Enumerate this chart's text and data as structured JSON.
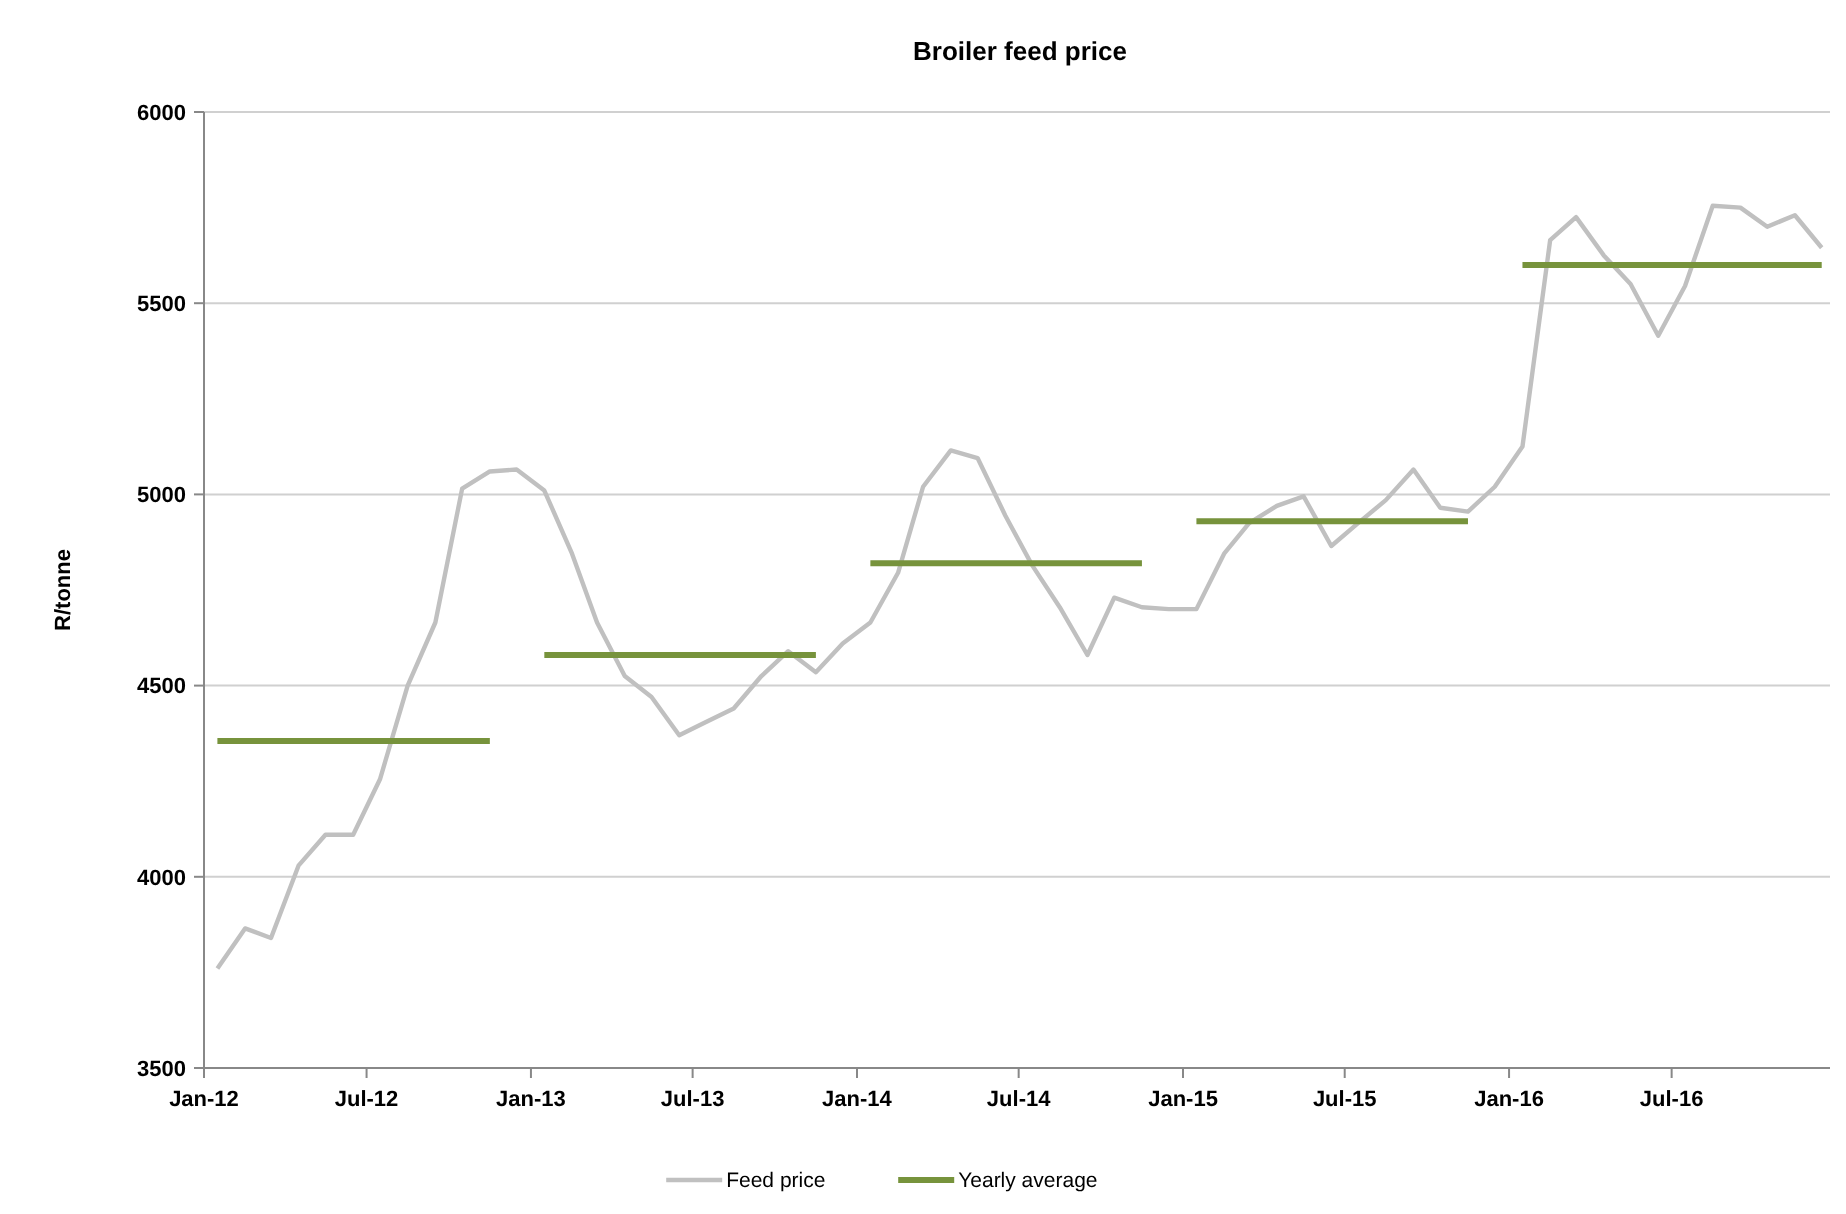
{
  "chart_data": {
    "type": "line",
    "title": "Broiler feed price",
    "ylabel": "R/tonne",
    "x": [
      "2012-01-16",
      "2012-02-16",
      "2012-03-16",
      "2012-04-16",
      "2012-05-16",
      "2012-06-16",
      "2012-07-16",
      "2012-08-16",
      "2012-09-16",
      "2012-10-16",
      "2012-11-16",
      "2012-12-16",
      "2013-01-16",
      "2013-02-16",
      "2013-03-16",
      "2013-04-16",
      "2013-05-16",
      "2013-06-16",
      "2013-07-16",
      "2013-08-16",
      "2013-09-16",
      "2013-10-16",
      "2013-11-16",
      "2013-12-16",
      "2014-01-16",
      "2014-02-16",
      "2014-03-16",
      "2014-04-16",
      "2014-05-16",
      "2014-06-16",
      "2014-07-16",
      "2014-08-16",
      "2014-09-16",
      "2014-10-16",
      "2014-11-16",
      "2014-12-16",
      "2015-01-16",
      "2015-02-16",
      "2015-03-16",
      "2015-04-16",
      "2015-05-16",
      "2015-06-16",
      "2015-07-16",
      "2015-08-16",
      "2015-09-16",
      "2015-10-16",
      "2015-11-16",
      "2015-12-16",
      "2016-01-16",
      "2016-02-16",
      "2016-03-16",
      "2016-04-16",
      "2016-05-16",
      "2016-06-16",
      "2016-07-16",
      "2016-08-16",
      "2016-09-16",
      "2016-10-16",
      "2016-11-16",
      "2016-12-16"
    ],
    "series": [
      {
        "name": "Feed price",
        "color": "#c0c0c0",
        "values": [
          3760,
          3865,
          3840,
          4030,
          4110,
          4110,
          4255,
          4500,
          4665,
          5015,
          5060,
          5065,
          5010,
          4845,
          4665,
          4525,
          4470,
          4370,
          4405,
          4440,
          4525,
          4590,
          4535,
          4610,
          4665,
          4795,
          5020,
          5115,
          5095,
          4945,
          4815,
          4705,
          4580,
          4730,
          4705,
          4700,
          4700,
          4845,
          4925,
          4970,
          4995,
          4865,
          4925,
          4985,
          5065,
          4965,
          4955,
          5020,
          5125,
          5665,
          5725,
          5625,
          5550,
          5415,
          5545,
          5755,
          5750,
          5700,
          5730,
          5645
        ]
      },
      {
        "name": "Yearly average",
        "color": "#77933c",
        "values": [
          4355,
          4355,
          4355,
          4355,
          4355,
          4355,
          4355,
          4355,
          4355,
          4355,
          4355,
          null,
          4580,
          4580,
          4580,
          4580,
          4580,
          4580,
          4580,
          4580,
          4580,
          4580,
          4580,
          null,
          4820,
          4820,
          4820,
          4820,
          4820,
          4820,
          4820,
          4820,
          4820,
          4820,
          4820,
          null,
          4930,
          4930,
          4930,
          4930,
          4930,
          4930,
          4930,
          4930,
          4930,
          4930,
          4930,
          null,
          5600,
          5600,
          5600,
          5600,
          5600,
          5600,
          5600,
          5600,
          5600,
          5600,
          5600,
          5600
        ]
      }
    ],
    "xlim": [
      "2012-01-01",
      "2017-01-01"
    ],
    "xticks": [
      {
        "value": "2012-01-01",
        "label": "Jan-12"
      },
      {
        "value": "2012-07-01",
        "label": "Jul-12"
      },
      {
        "value": "2013-01-01",
        "label": "Jan-13"
      },
      {
        "value": "2013-07-01",
        "label": "Jul-13"
      },
      {
        "value": "2014-01-01",
        "label": "Jan-14"
      },
      {
        "value": "2014-07-01",
        "label": "Jul-14"
      },
      {
        "value": "2015-01-01",
        "label": "Jan-15"
      },
      {
        "value": "2015-07-01",
        "label": "Jul-15"
      },
      {
        "value": "2016-01-01",
        "label": "Jan-16"
      },
      {
        "value": "2016-07-01",
        "label": "Jul-16"
      },
      {
        "value": "2017-01-01",
        "label": null
      }
    ],
    "ylim": [
      3500,
      6000
    ],
    "yticks": [
      3500,
      4000,
      4500,
      5000,
      5500,
      6000
    ],
    "grid": "y",
    "legend": "bottom",
    "marker": "none",
    "line_style": "solid"
  }
}
